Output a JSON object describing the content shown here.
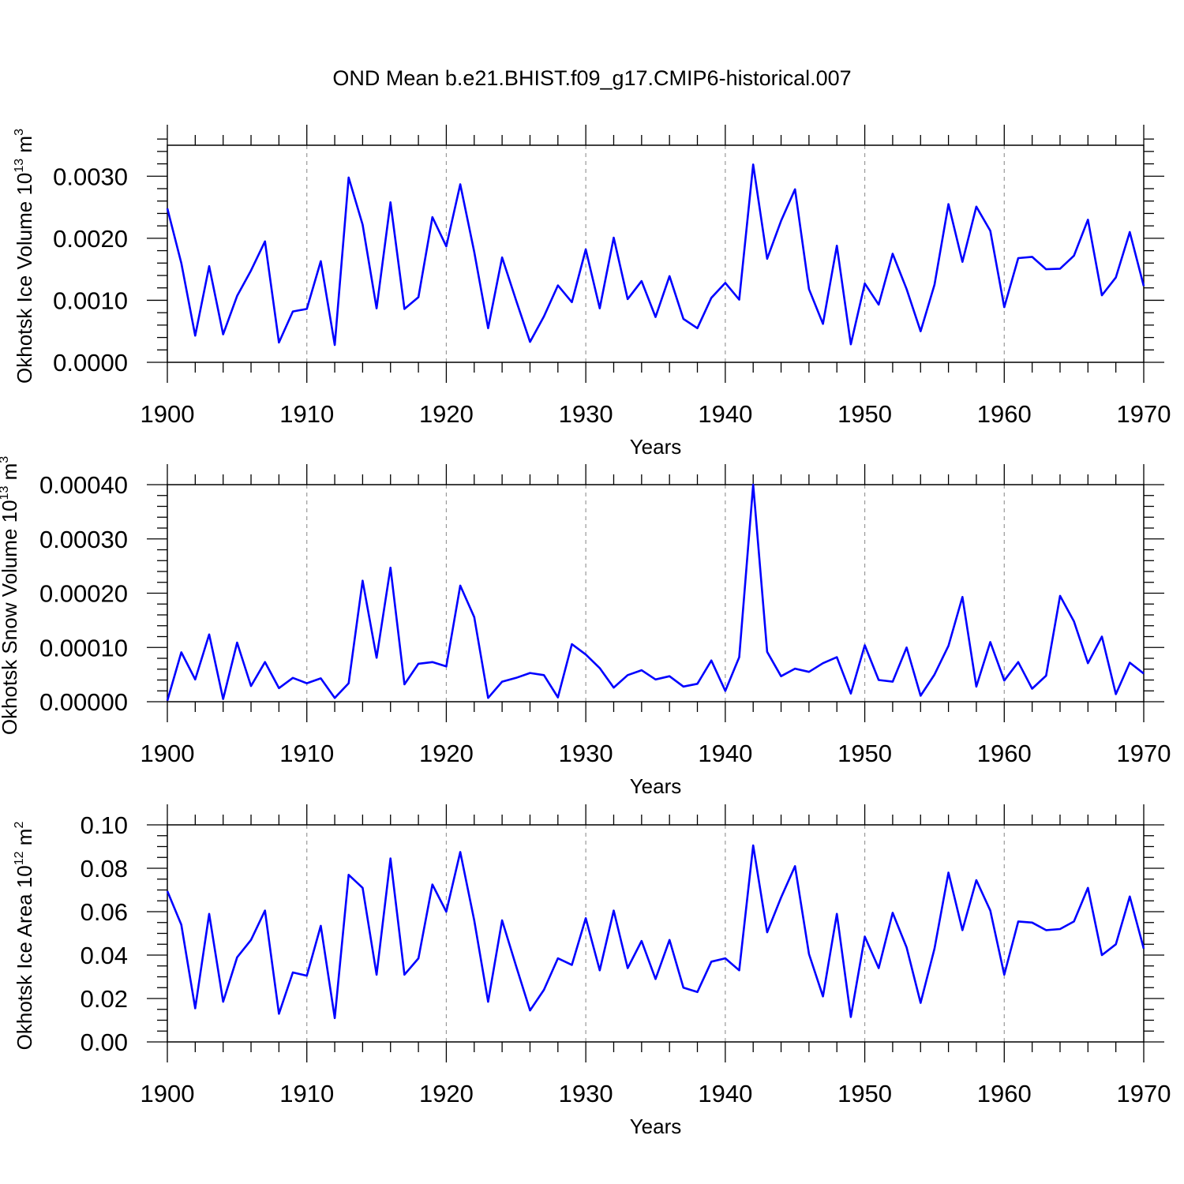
{
  "figure": {
    "title": "OND Mean b.e21.BHIST.f09_g17.CMIP6-historical.007",
    "line_color": "#0000ff",
    "grid_color": "#999999"
  },
  "chart_data": [
    {
      "type": "line",
      "name": "ice-volume",
      "title": "OND Mean b.e21.BHIST.f09_g17.CMIP6-historical.007",
      "xlabel": "Years",
      "ylabel_main": "Okhotsk Ice Volume 10",
      "ylabel_exp": "13",
      "ylabel_unit": "m",
      "ylabel_unit_exp": "3",
      "xlim": [
        1900,
        1970
      ],
      "ylim": [
        0,
        0.0035
      ],
      "xticks": [
        1900,
        1910,
        1920,
        1930,
        1940,
        1950,
        1960,
        1970
      ],
      "yticks": [
        0,
        0.001,
        0.002,
        0.003
      ],
      "ytick_labels": [
        "0.0000",
        "0.0010",
        "0.0020",
        "0.0030"
      ],
      "ytick_minor_step": 0.0002,
      "grid": "dashed vertical at major x ticks",
      "x_start": 1900,
      "values": [
        0.00248,
        0.0016,
        0.00043,
        0.00155,
        0.00045,
        0.00107,
        0.00148,
        0.00195,
        0.00032,
        0.00082,
        0.00086,
        0.00163,
        0.00028,
        0.00298,
        0.00222,
        0.00087,
        0.00258,
        0.00086,
        0.00105,
        0.00234,
        0.00187,
        0.00287,
        0.00178,
        0.00055,
        0.00169,
        0.001,
        0.00033,
        0.00074,
        0.00124,
        0.00097,
        0.00182,
        0.00087,
        0.00201,
        0.00102,
        0.00131,
        0.00073,
        0.00139,
        0.0007,
        0.00055,
        0.00104,
        0.00128,
        0.00101,
        0.00319,
        0.00167,
        0.00228,
        0.00279,
        0.00118,
        0.00062,
        0.00188,
        0.00029,
        0.00127,
        0.00093,
        0.00175,
        0.00118,
        0.0005,
        0.00125,
        0.00255,
        0.00162,
        0.00251,
        0.00212,
        0.00089,
        0.00168,
        0.0017,
        0.0015,
        0.00151,
        0.00172,
        0.0023,
        0.00108,
        0.00137,
        0.0021,
        0.00123
      ]
    },
    {
      "type": "line",
      "name": "snow-volume",
      "xlabel": "Years",
      "ylabel_main": "Okhotsk Snow Volume 10",
      "ylabel_exp": "13",
      "ylabel_unit": "m",
      "ylabel_unit_exp": "3",
      "xlim": [
        1900,
        1970
      ],
      "ylim": [
        0,
        0.0004
      ],
      "xticks": [
        1900,
        1910,
        1920,
        1930,
        1940,
        1950,
        1960,
        1970
      ],
      "yticks": [
        0,
        0.0001,
        0.0002,
        0.0003,
        0.0004
      ],
      "ytick_labels": [
        "0.00000",
        "0.00010",
        "0.00020",
        "0.00030",
        "0.00040"
      ],
      "ytick_minor_step": 2e-05,
      "grid": "dashed vertical at major x ticks",
      "x_start": 1900,
      "values": [
        2e-06,
        9.1e-05,
        4.1e-05,
        0.000124,
        5e-06,
        0.000109,
        2.9e-05,
        7.3e-05,
        2.5e-05,
        4.4e-05,
        3.4e-05,
        4.3e-05,
        7e-06,
        3.4e-05,
        0.000223,
        8.1e-05,
        0.000247,
        3.2e-05,
        7e-05,
        7.3e-05,
        6.5e-05,
        0.000214,
        0.000156,
        7e-06,
        3.7e-05,
        4.4e-05,
        5.3e-05,
        4.9e-05,
        8e-06,
        0.000106,
        8.7e-05,
        6.2e-05,
        2.6e-05,
        4.9e-05,
        5.8e-05,
        4.1e-05,
        4.7e-05,
        2.8e-05,
        3.3e-05,
        7.6e-05,
        2e-05,
        8.2e-05,
        0.0004,
        9.2e-05,
        4.7e-05,
        6.1e-05,
        5.5e-05,
        7.1e-05,
        8.2e-05,
        1.5e-05,
        0.000104,
        4e-05,
        3.7e-05,
        0.0001,
        1.1e-05,
        5e-05,
        0.000103,
        0.000193,
        2.8e-05,
        0.00011,
        3.9e-05,
        7.3e-05,
        2.4e-05,
        4.8e-05,
        0.000195,
        0.000148,
        7.1e-05,
        0.00012,
        1.4e-05,
        7.2e-05,
        5.2e-05
      ]
    },
    {
      "type": "line",
      "name": "ice-area",
      "xlabel": "Years",
      "ylabel_main": "Okhotsk Ice Area 10",
      "ylabel_exp": "12",
      "ylabel_unit": "m",
      "ylabel_unit_exp": "2",
      "xlim": [
        1900,
        1970
      ],
      "ylim": [
        0,
        0.1
      ],
      "xticks": [
        1900,
        1910,
        1920,
        1930,
        1940,
        1950,
        1960,
        1970
      ],
      "yticks": [
        0,
        0.02,
        0.04,
        0.06,
        0.08,
        0.1
      ],
      "ytick_labels": [
        "0.00",
        "0.02",
        "0.04",
        "0.06",
        "0.08",
        "0.10"
      ],
      "ytick_minor_step": 0.005,
      "grid": "dashed vertical at major x ticks",
      "x_start": 1900,
      "values": [
        0.0695,
        0.054,
        0.0155,
        0.059,
        0.0185,
        0.039,
        0.047,
        0.0605,
        0.013,
        0.032,
        0.0305,
        0.0535,
        0.011,
        0.077,
        0.071,
        0.031,
        0.0845,
        0.031,
        0.0385,
        0.0725,
        0.06,
        0.0875,
        0.056,
        0.0185,
        0.056,
        0.035,
        0.0145,
        0.024,
        0.0385,
        0.0355,
        0.057,
        0.033,
        0.0605,
        0.034,
        0.0465,
        0.029,
        0.047,
        0.025,
        0.023,
        0.037,
        0.0385,
        0.033,
        0.0905,
        0.0505,
        0.0665,
        0.081,
        0.0405,
        0.021,
        0.059,
        0.0115,
        0.0485,
        0.034,
        0.0595,
        0.0435,
        0.018,
        0.043,
        0.078,
        0.0515,
        0.0745,
        0.0605,
        0.031,
        0.0555,
        0.055,
        0.0515,
        0.052,
        0.0555,
        0.071,
        0.04,
        0.045,
        0.067,
        0.043
      ]
    }
  ]
}
